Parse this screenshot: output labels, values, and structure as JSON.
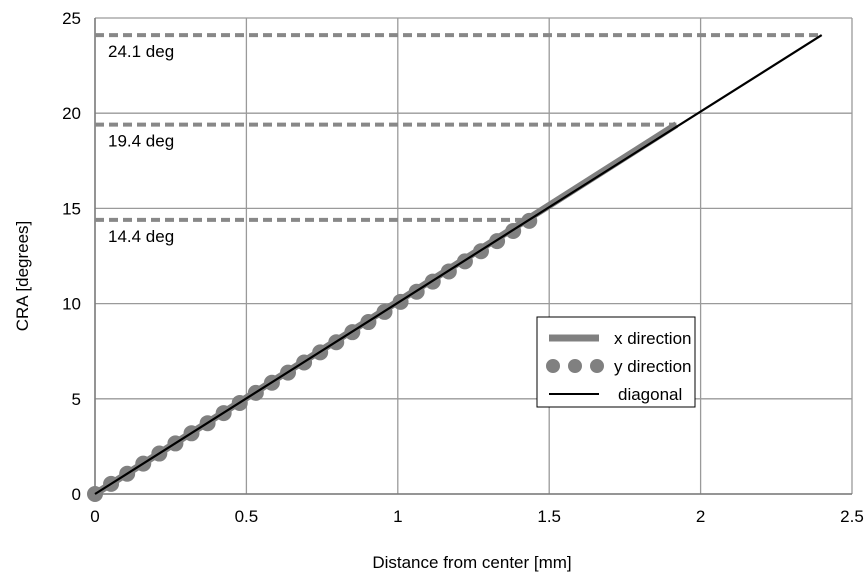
{
  "chart_data": {
    "type": "line",
    "title": "",
    "xlabel": "Distance from center [mm]",
    "ylabel": "CRA [degrees]",
    "xlim": [
      0,
      2.5
    ],
    "ylim": [
      0,
      25
    ],
    "xticks": [
      "0",
      "0.5",
      "1",
      "1.5",
      "2",
      "2.5"
    ],
    "yticks": [
      "0",
      "5",
      "10",
      "15",
      "20",
      "25"
    ],
    "grid": true,
    "legend_position": "right-center",
    "series": [
      {
        "name": "x direction",
        "style": "solid-thick",
        "color": "#808080",
        "x": [
          0,
          1.92
        ],
        "y": [
          0,
          19.4
        ]
      },
      {
        "name": "y direction",
        "style": "dotted-thick",
        "color": "#808080",
        "x": [
          0,
          1.44
        ],
        "y": [
          0,
          14.4
        ]
      },
      {
        "name": "diagonal",
        "style": "solid-thin",
        "color": "#000000",
        "x": [
          0,
          2.4
        ],
        "y": [
          0,
          24.1
        ]
      }
    ],
    "reference_lines": [
      {
        "label": "24.1 deg",
        "y": 24.1,
        "x_end": 2.4
      },
      {
        "label": "19.4 deg",
        "y": 19.4,
        "x_end": 1.92
      },
      {
        "label": "14.4 deg",
        "y": 14.4,
        "x_end": 1.44
      }
    ]
  }
}
